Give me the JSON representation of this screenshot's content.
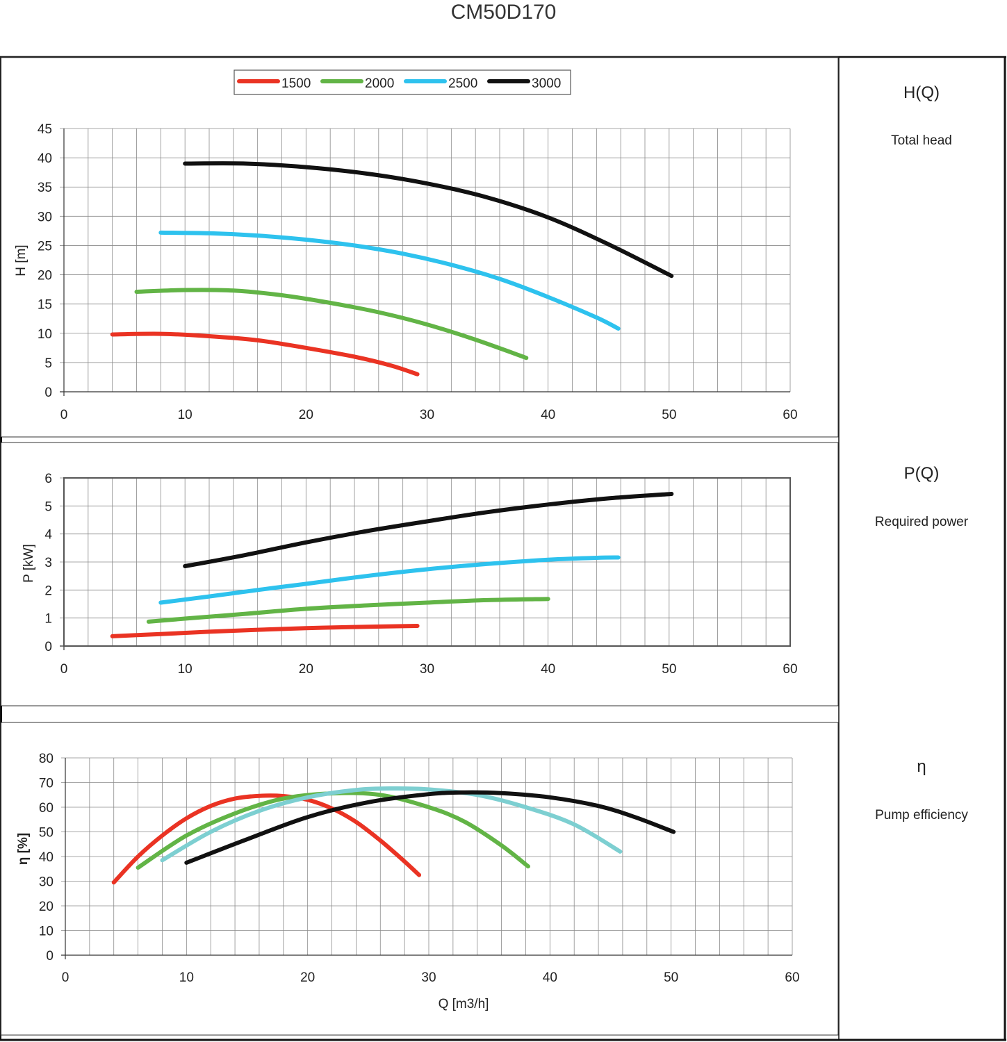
{
  "title": "CM50D170",
  "colors": {
    "1500": "#ea3323",
    "2000": "#62b446",
    "2500": "#2ec2ee",
    "3000": "#111111",
    "2500_efficiency": "#7dcfd1"
  },
  "legend": [
    {
      "label": "1500",
      "color": "#ea3323"
    },
    {
      "label": "2000",
      "color": "#62b446"
    },
    {
      "label": "2500",
      "color": "#2ec2ee"
    },
    {
      "label": "3000",
      "color": "#111111"
    }
  ],
  "panels": [
    {
      "title": "H(Q)",
      "subtitle": "Total head"
    },
    {
      "title": "P(Q)",
      "subtitle": "Required power"
    },
    {
      "title": "η",
      "subtitle": "Pump efficiency"
    }
  ],
  "chart_data": [
    {
      "type": "line",
      "xlabel": "",
      "ylabel": "H [m]",
      "xlim": [
        0,
        60
      ],
      "ylim": [
        0,
        45
      ],
      "xticks": [
        0,
        10,
        20,
        30,
        40,
        50,
        60
      ],
      "yticks": [
        0,
        5,
        10,
        15,
        20,
        25,
        30,
        35,
        40,
        45
      ],
      "grid": true,
      "legend": "top-center",
      "series": [
        {
          "name": "1500",
          "color": "#ea3323",
          "points": [
            [
              4,
              9.8
            ],
            [
              8,
              9.9
            ],
            [
              12,
              9.5
            ],
            [
              16,
              8.8
            ],
            [
              20,
              7.5
            ],
            [
              24,
              6.0
            ],
            [
              27,
              4.5
            ],
            [
              29.2,
              3.0
            ]
          ]
        },
        {
          "name": "2000",
          "color": "#62b446",
          "points": [
            [
              6,
              17.1
            ],
            [
              10,
              17.4
            ],
            [
              14,
              17.3
            ],
            [
              18,
              16.5
            ],
            [
              22,
              15.2
            ],
            [
              26,
              13.6
            ],
            [
              30,
              11.5
            ],
            [
              34,
              8.9
            ],
            [
              38.2,
              5.8
            ]
          ]
        },
        {
          "name": "2500",
          "color": "#2ec2ee",
          "points": [
            [
              8,
              27.2
            ],
            [
              12,
              27.1
            ],
            [
              16,
              26.7
            ],
            [
              20,
              26.0
            ],
            [
              24,
              25.0
            ],
            [
              28,
              23.6
            ],
            [
              32,
              21.7
            ],
            [
              36,
              19.3
            ],
            [
              40,
              16.2
            ],
            [
              44,
              12.7
            ],
            [
              45.8,
              10.8
            ]
          ]
        },
        {
          "name": "3000",
          "color": "#111111",
          "points": [
            [
              10,
              39.0
            ],
            [
              15,
              39.0
            ],
            [
              20,
              38.4
            ],
            [
              25,
              37.3
            ],
            [
              30,
              35.6
            ],
            [
              35,
              33.2
            ],
            [
              40,
              29.8
            ],
            [
              45,
              25.2
            ],
            [
              50.2,
              19.8
            ]
          ]
        }
      ]
    },
    {
      "type": "line",
      "xlabel": "",
      "ylabel": "P [kW]",
      "xlim": [
        0,
        60
      ],
      "ylim": [
        0,
        6
      ],
      "xticks": [
        0,
        10,
        20,
        30,
        40,
        50,
        60
      ],
      "yticks": [
        0,
        1,
        2,
        3,
        4,
        5,
        6
      ],
      "grid": true,
      "series": [
        {
          "name": "1500",
          "color": "#ea3323",
          "points": [
            [
              4,
              0.35
            ],
            [
              8,
              0.43
            ],
            [
              12,
              0.51
            ],
            [
              16,
              0.58
            ],
            [
              20,
              0.64
            ],
            [
              24,
              0.68
            ],
            [
              29.2,
              0.72
            ]
          ]
        },
        {
          "name": "2000",
          "color": "#62b446",
          "points": [
            [
              7,
              0.87
            ],
            [
              10,
              0.98
            ],
            [
              15,
              1.15
            ],
            [
              20,
              1.33
            ],
            [
              25,
              1.45
            ],
            [
              30,
              1.55
            ],
            [
              35,
              1.64
            ],
            [
              40,
              1.68
            ]
          ]
        },
        {
          "name": "2500",
          "color": "#2ec2ee",
          "points": [
            [
              8,
              1.55
            ],
            [
              12,
              1.77
            ],
            [
              16,
              2.0
            ],
            [
              20,
              2.22
            ],
            [
              25,
              2.5
            ],
            [
              30,
              2.74
            ],
            [
              35,
              2.93
            ],
            [
              40,
              3.08
            ],
            [
              44,
              3.15
            ],
            [
              45.8,
              3.16
            ]
          ]
        },
        {
          "name": "3000",
          "color": "#111111",
          "points": [
            [
              10,
              2.85
            ],
            [
              15,
              3.25
            ],
            [
              20,
              3.7
            ],
            [
              25,
              4.1
            ],
            [
              30,
              4.45
            ],
            [
              35,
              4.78
            ],
            [
              40,
              5.05
            ],
            [
              45,
              5.27
            ],
            [
              50.2,
              5.43
            ]
          ]
        }
      ]
    },
    {
      "type": "line",
      "xlabel": "Q [m3/h]",
      "ylabel": "η [%]",
      "xlim": [
        0,
        60
      ],
      "ylim": [
        0,
        80
      ],
      "xticks": [
        0,
        10,
        20,
        30,
        40,
        50,
        60
      ],
      "yticks": [
        0,
        10,
        20,
        30,
        40,
        50,
        60,
        70,
        80
      ],
      "grid": true,
      "series": [
        {
          "name": "1500",
          "color": "#ea3323",
          "points": [
            [
              4,
              29.5
            ],
            [
              6,
              40
            ],
            [
              8,
              48.5
            ],
            [
              10,
              55.5
            ],
            [
              12,
              60.5
            ],
            [
              14,
              63.5
            ],
            [
              16,
              64.6
            ],
            [
              18,
              64.5
            ],
            [
              20,
              63
            ],
            [
              22,
              59.5
            ],
            [
              24,
              54
            ],
            [
              26,
              46.5
            ],
            [
              28,
              38
            ],
            [
              29.2,
              32.5
            ]
          ]
        },
        {
          "name": "2000",
          "color": "#62b446",
          "points": [
            [
              6,
              35.5
            ],
            [
              10,
              48.5
            ],
            [
              14,
              57.5
            ],
            [
              18,
              63.5
            ],
            [
              22,
              65.6
            ],
            [
              26,
              65
            ],
            [
              30,
              60
            ],
            [
              33,
              54
            ],
            [
              36,
              44.5
            ],
            [
              38.2,
              36
            ]
          ]
        },
        {
          "name": "2500",
          "color": "#7dcfd1",
          "points": [
            [
              8,
              38.5
            ],
            [
              12,
              50
            ],
            [
              16,
              58.5
            ],
            [
              20,
              64
            ],
            [
              24,
              67
            ],
            [
              27,
              67.6
            ],
            [
              30,
              67.2
            ],
            [
              34,
              65
            ],
            [
              38,
              60
            ],
            [
              42,
              53
            ],
            [
              45.8,
              42
            ]
          ]
        },
        {
          "name": "3000",
          "color": "#111111",
          "points": [
            [
              10,
              37.5
            ],
            [
              15,
              47
            ],
            [
              20,
              56
            ],
            [
              25,
              62
            ],
            [
              30,
              65.3
            ],
            [
              33,
              66
            ],
            [
              36,
              65.7
            ],
            [
              40,
              64
            ],
            [
              44,
              60.5
            ],
            [
              47,
              56
            ],
            [
              50.2,
              50
            ]
          ]
        }
      ]
    }
  ]
}
